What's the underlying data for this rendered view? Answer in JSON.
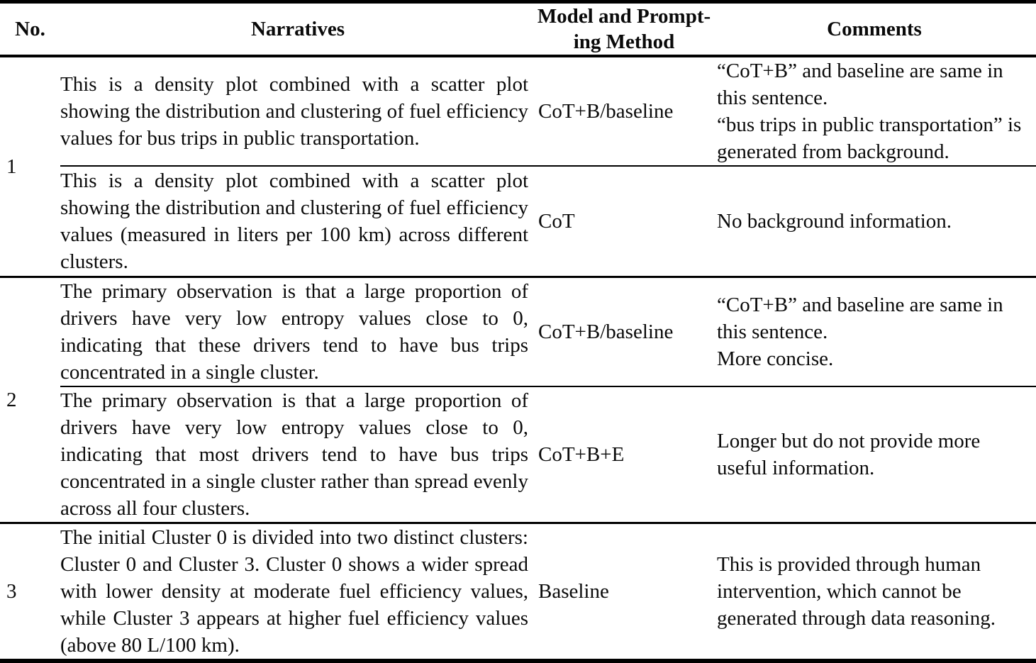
{
  "table": {
    "colors": {
      "background": "#ffffff",
      "text": "#0a0a0a",
      "rule": "#000000"
    },
    "columns": {
      "no": "No.",
      "narratives": "Narratives",
      "model": "Model and Prompt-\ning Method",
      "comments": "Comments"
    },
    "groups": [
      {
        "no": "1",
        "entries": [
          {
            "narrative": "This is a density plot combined with a scatter plot showing the distribution and clustering of fuel efficiency values for bus trips in public transportation.",
            "model": "CoT+B/baseline",
            "comments": [
              "“CoT+B” and baseline are same in this sentence.",
              "“bus trips in public transportation” is generated from background."
            ]
          },
          {
            "narrative": "This is a density plot combined with a scatter plot showing the distribution and clustering of fuel efficiency values (measured in liters per 100 km) across different clusters.",
            "model": "CoT",
            "comments": [
              "No background information."
            ]
          }
        ]
      },
      {
        "no": "2",
        "entries": [
          {
            "narrative": "The primary observation is that a large proportion of drivers have very low entropy values close to 0, indicating that these drivers tend to have bus trips concentrated in a single cluster.",
            "model": "CoT+B/baseline",
            "comments": [
              "“CoT+B” and baseline are same in this sentence.",
              "More concise."
            ]
          },
          {
            "narrative": "The primary observation is that a large proportion of drivers have very low entropy values close to 0, indicating that most drivers tend to have bus trips concentrated in a single cluster rather than spread evenly across all four clusters.",
            "model": "CoT+B+E",
            "comments": [
              "Longer but do not provide more useful information."
            ]
          }
        ]
      },
      {
        "no": "3",
        "entries": [
          {
            "narrative": "The initial Cluster 0 is divided into two distinct clusters: Cluster 0 and Cluster 3. Cluster 0 shows a wider spread with lower density at moderate fuel efficiency values, while Cluster 3 appears at higher fuel efficiency values (above 80 L/100 km).",
            "model": "Baseline",
            "comments": [
              "This is provided through human intervention, which cannot be generated through data reasoning."
            ]
          }
        ]
      }
    ]
  }
}
